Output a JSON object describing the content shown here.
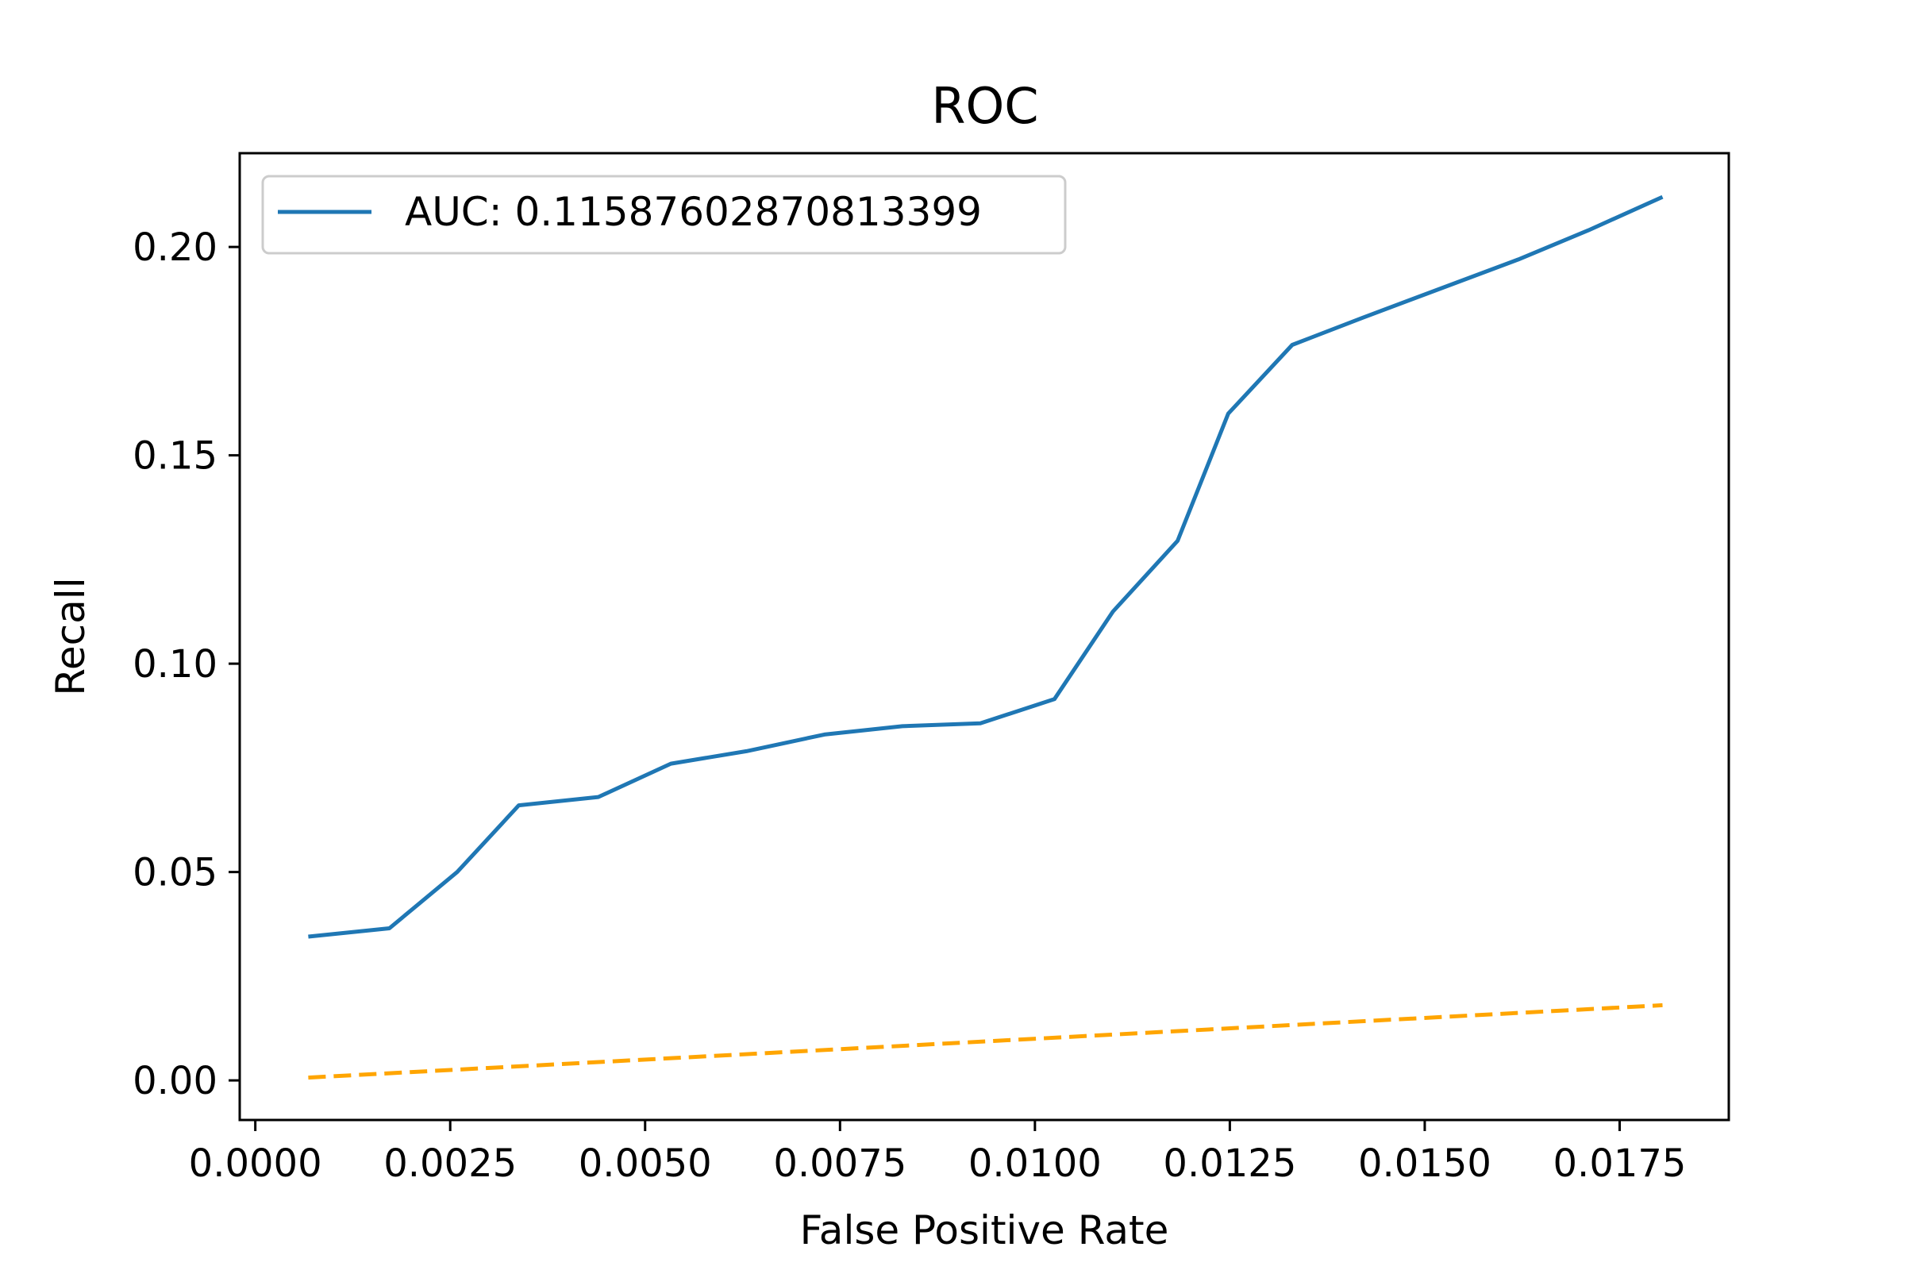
{
  "chart_data": {
    "type": "line",
    "title": "ROC",
    "xlabel": "False Positive Rate",
    "ylabel": "Recall",
    "xlim": [
      -0.0002,
      0.0189
    ],
    "ylim": [
      -0.0095,
      0.2225
    ],
    "x_ticks": [
      0.0,
      0.0025,
      0.005,
      0.0075,
      0.01,
      0.0125,
      0.015,
      0.0175
    ],
    "x_tick_labels": [
      "0.0000",
      "0.0025",
      "0.0050",
      "0.0075",
      "0.0100",
      "0.0125",
      "0.0150",
      "0.0175"
    ],
    "y_ticks": [
      0.0,
      0.05,
      0.1,
      0.15,
      0.2
    ],
    "y_tick_labels": [
      "0.00",
      "0.05",
      "0.10",
      "0.15",
      "0.20"
    ],
    "grid": false,
    "legend_position": "top-left",
    "series": [
      {
        "name": "AUC: 0.11587602870813399",
        "color": "#1f77b4",
        "style": "solid",
        "x": [
          0.00068,
          0.00172,
          0.00259,
          0.00338,
          0.0044,
          0.00533,
          0.0063,
          0.0073,
          0.0083,
          0.0093,
          0.01025,
          0.011,
          0.01183,
          0.01248,
          0.0133,
          0.0142,
          0.0152,
          0.0162,
          0.0171,
          0.01805
        ],
        "y": [
          0.0345,
          0.0365,
          0.05,
          0.066,
          0.068,
          0.076,
          0.079,
          0.083,
          0.085,
          0.0857,
          0.0915,
          0.1125,
          0.1295,
          0.16,
          0.1765,
          0.183,
          0.19,
          0.197,
          0.204,
          0.212
        ]
      },
      {
        "color": "#ffa500",
        "style": "dashed",
        "x": [
          0.00068,
          0.00805,
          0.01805
        ],
        "y": [
          0.00068,
          0.00805,
          0.01805
        ]
      }
    ]
  }
}
